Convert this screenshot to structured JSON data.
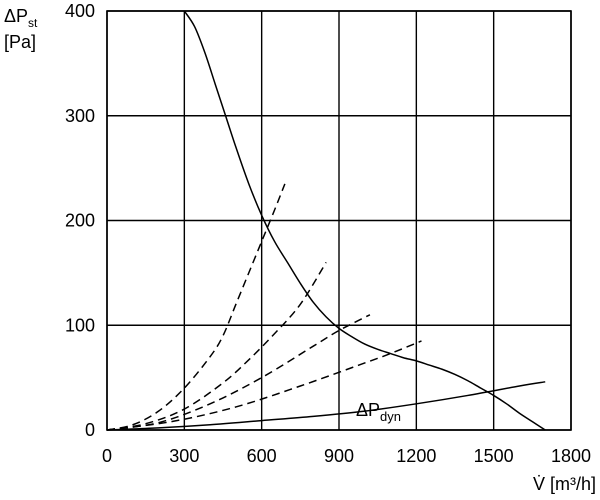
{
  "chart_data": {
    "type": "line",
    "xlabel": "V̇ [m³/h]",
    "ylabel": "ΔPst [Pa]",
    "ylabel_parts": {
      "main": "ΔP",
      "sub": "st",
      "unit": "[Pa]"
    },
    "xlim": [
      0,
      1800
    ],
    "ylim": [
      0,
      400
    ],
    "x_ticks": [
      0,
      300,
      600,
      900,
      1200,
      1500,
      1800
    ],
    "y_ticks": [
      0,
      100,
      200,
      300,
      400
    ],
    "grid": true,
    "annotation": {
      "main": "ΔP",
      "sub": "dyn"
    },
    "series": [
      {
        "style": "solid",
        "points": [
          [
            300,
            400
          ],
          [
            340,
            385
          ],
          [
            380,
            360
          ],
          [
            420,
            330
          ],
          [
            460,
            300
          ],
          [
            500,
            270
          ],
          [
            550,
            235
          ],
          [
            600,
            205
          ],
          [
            650,
            180
          ],
          [
            700,
            160
          ],
          [
            750,
            140
          ],
          [
            800,
            122
          ],
          [
            850,
            108
          ],
          [
            900,
            97
          ],
          [
            950,
            89
          ],
          [
            1000,
            82
          ],
          [
            1050,
            77
          ],
          [
            1100,
            73
          ],
          [
            1150,
            69
          ],
          [
            1200,
            66
          ],
          [
            1250,
            62
          ],
          [
            1300,
            58
          ],
          [
            1350,
            53
          ],
          [
            1400,
            47
          ],
          [
            1450,
            40
          ],
          [
            1500,
            33
          ],
          [
            1550,
            25
          ],
          [
            1600,
            16
          ],
          [
            1650,
            8
          ],
          [
            1700,
            0
          ]
        ]
      },
      {
        "style": "solid",
        "points": [
          [
            0,
            0
          ],
          [
            200,
            2
          ],
          [
            400,
            5
          ],
          [
            600,
            9
          ],
          [
            800,
            13
          ],
          [
            1000,
            18
          ],
          [
            1200,
            25
          ],
          [
            1400,
            33
          ],
          [
            1600,
            42
          ],
          [
            1700,
            46
          ]
        ]
      },
      {
        "style": "dashed",
        "points": [
          [
            0,
            0
          ],
          [
            100,
            5
          ],
          [
            200,
            18
          ],
          [
            300,
            40
          ],
          [
            400,
            70
          ],
          [
            450,
            90
          ],
          [
            500,
            120
          ],
          [
            550,
            150
          ],
          [
            600,
            180
          ],
          [
            650,
            210
          ],
          [
            690,
            235
          ]
        ]
      },
      {
        "style": "dashed",
        "points": [
          [
            0,
            0
          ],
          [
            150,
            6
          ],
          [
            300,
            20
          ],
          [
            450,
            45
          ],
          [
            550,
            67
          ],
          [
            650,
            92
          ],
          [
            750,
            120
          ],
          [
            850,
            160
          ]
        ]
      },
      {
        "style": "dashed",
        "points": [
          [
            0,
            0
          ],
          [
            200,
            7
          ],
          [
            400,
            25
          ],
          [
            600,
            50
          ],
          [
            800,
            80
          ],
          [
            900,
            95
          ],
          [
            1020,
            110
          ]
        ]
      },
      {
        "style": "dashed",
        "points": [
          [
            0,
            0
          ],
          [
            250,
            8
          ],
          [
            500,
            22
          ],
          [
            750,
            42
          ],
          [
            1000,
            64
          ],
          [
            1100,
            73
          ],
          [
            1220,
            85
          ]
        ]
      }
    ]
  }
}
